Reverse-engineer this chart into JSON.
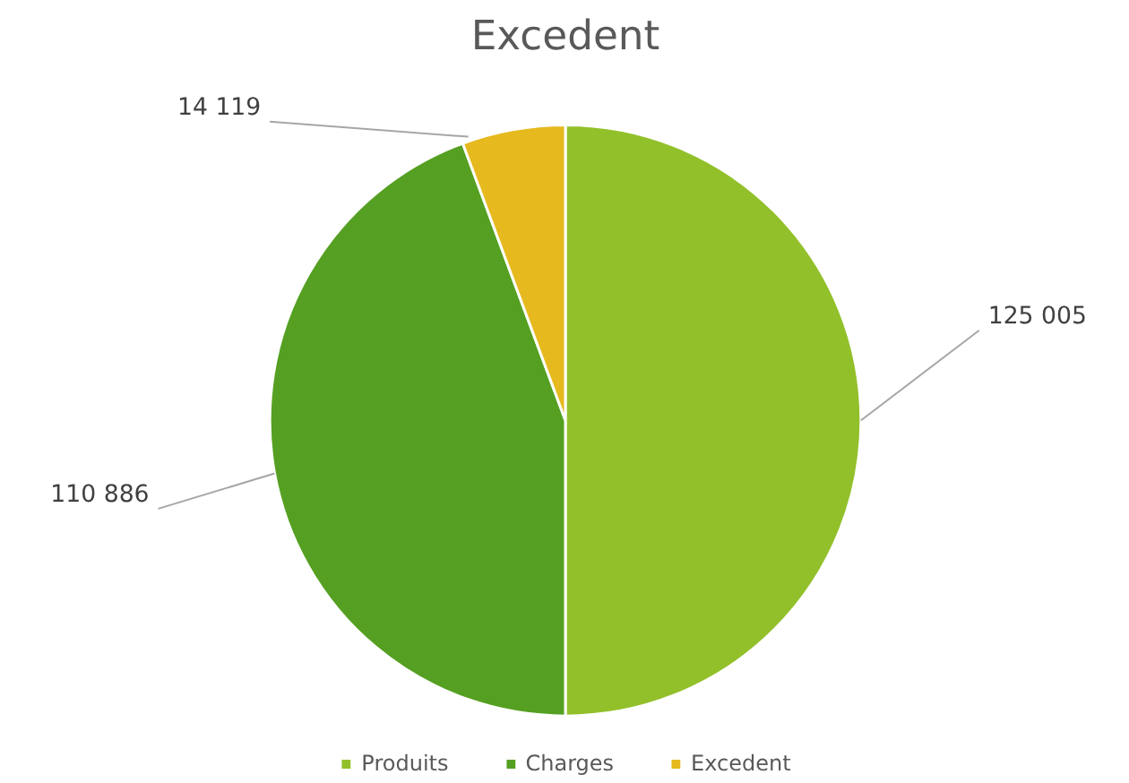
{
  "chart_data": {
    "type": "pie",
    "title": "Excedent",
    "categories": [
      "Produits",
      "Charges",
      "Excedent"
    ],
    "values": [
      125005,
      110886,
      14119
    ],
    "colors": [
      "#92c02a",
      "#55a022",
      "#e6b91e"
    ],
    "data_labels": true,
    "legend": "bottom"
  }
}
